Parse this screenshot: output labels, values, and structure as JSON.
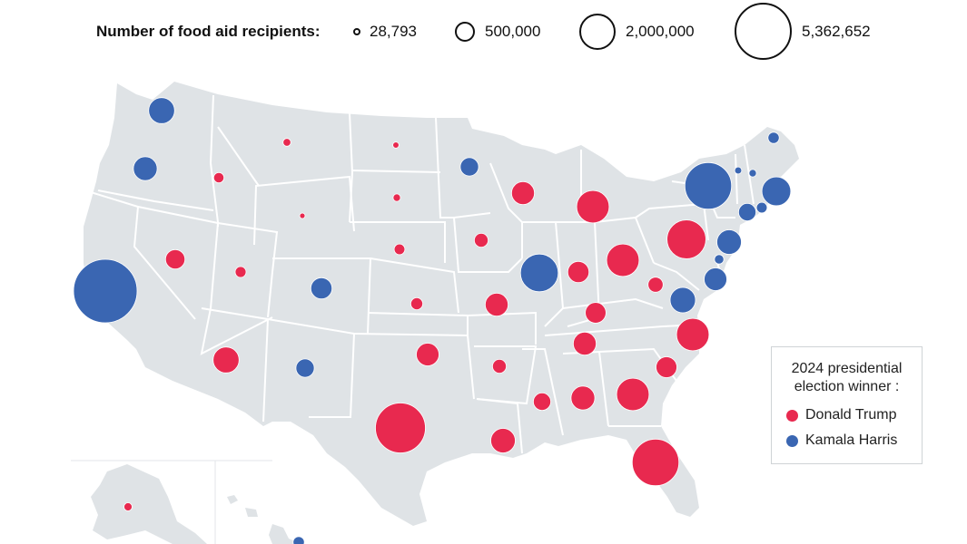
{
  "size_legend": {
    "title": "Number of food aid recipients:",
    "entries": [
      {
        "label": "28,793",
        "value": 28793
      },
      {
        "label": "500,000",
        "value": 500000
      },
      {
        "label": "2,000,000",
        "value": 2000000
      },
      {
        "label": "5,362,652",
        "value": 5362652
      }
    ]
  },
  "winner_legend": {
    "title_line1": "2024 presidential",
    "title_line2": "election winner :",
    "items": [
      {
        "label": "Donald Trump",
        "color": "#e8294f"
      },
      {
        "label": "Kamala Harris",
        "color": "#3a66b2"
      }
    ]
  },
  "colors": {
    "land": "#dfe3e6",
    "border": "#ffffff",
    "trump": "#e8294f",
    "harris": "#3a66b2"
  },
  "states": [
    {
      "state": "Washington",
      "winner": "harris",
      "recipients": 900000
    },
    {
      "state": "Oregon",
      "winner": "harris",
      "recipients": 750000
    },
    {
      "state": "California",
      "winner": "harris",
      "recipients": 5362652
    },
    {
      "state": "Idaho",
      "winner": "trump",
      "recipients": 140000
    },
    {
      "state": "Nevada",
      "winner": "trump",
      "recipients": 500000
    },
    {
      "state": "Utah",
      "winner": "trump",
      "recipients": 160000
    },
    {
      "state": "Arizona",
      "winner": "trump",
      "recipients": 900000
    },
    {
      "state": "Montana",
      "winner": "trump",
      "recipients": 80000
    },
    {
      "state": "Wyoming",
      "winner": "trump",
      "recipients": 28793
    },
    {
      "state": "Colorado",
      "winner": "harris",
      "recipients": 600000
    },
    {
      "state": "New Mexico",
      "winner": "harris",
      "recipients": 450000
    },
    {
      "state": "North Dakota",
      "winner": "trump",
      "recipients": 50000
    },
    {
      "state": "South Dakota",
      "winner": "trump",
      "recipients": 75000
    },
    {
      "state": "Nebraska",
      "winner": "trump",
      "recipients": 150000
    },
    {
      "state": "Kansas",
      "winner": "trump",
      "recipients": 190000
    },
    {
      "state": "Oklahoma",
      "winner": "trump",
      "recipients": 680000
    },
    {
      "state": "Texas",
      "winner": "trump",
      "recipients": 3300000
    },
    {
      "state": "Minnesota",
      "winner": "harris",
      "recipients": 450000
    },
    {
      "state": "Iowa",
      "winner": "trump",
      "recipients": 250000
    },
    {
      "state": "Missouri",
      "winner": "trump",
      "recipients": 690000
    },
    {
      "state": "Arkansas",
      "winner": "trump",
      "recipients": 250000
    },
    {
      "state": "Louisiana",
      "winner": "trump",
      "recipients": 800000
    },
    {
      "state": "Wisconsin",
      "winner": "trump",
      "recipients": 700000
    },
    {
      "state": "Illinois",
      "winner": "harris",
      "recipients": 1900000
    },
    {
      "state": "Michigan",
      "winner": "trump",
      "recipients": 1400000
    },
    {
      "state": "Indiana",
      "winner": "trump",
      "recipients": 600000
    },
    {
      "state": "Ohio",
      "winner": "trump",
      "recipients": 1400000
    },
    {
      "state": "Kentucky",
      "winner": "trump",
      "recipients": 570000
    },
    {
      "state": "Tennessee",
      "winner": "trump",
      "recipients": 700000
    },
    {
      "state": "Mississippi",
      "winner": "trump",
      "recipients": 400000
    },
    {
      "state": "Alabama",
      "winner": "trump",
      "recipients": 750000
    },
    {
      "state": "Georgia",
      "winner": "trump",
      "recipients": 1400000
    },
    {
      "state": "Florida",
      "winner": "trump",
      "recipients": 2900000
    },
    {
      "state": "South Carolina",
      "winner": "trump",
      "recipients": 580000
    },
    {
      "state": "North Carolina",
      "winner": "trump",
      "recipients": 1400000
    },
    {
      "state": "Virginia",
      "winner": "harris",
      "recipients": 860000
    },
    {
      "state": "West Virginia",
      "winner": "trump",
      "recipients": 300000
    },
    {
      "state": "Pennsylvania",
      "winner": "trump",
      "recipients": 2000000
    },
    {
      "state": "New York",
      "winner": "harris",
      "recipients": 2900000
    },
    {
      "state": "Vermont",
      "winner": "harris",
      "recipients": 65000
    },
    {
      "state": "New Hampshire",
      "winner": "harris",
      "recipients": 75000
    },
    {
      "state": "Maine",
      "winner": "harris",
      "recipients": 170000
    },
    {
      "state": "Massachusetts",
      "winner": "harris",
      "recipients": 1100000
    },
    {
      "state": "Connecticut",
      "winner": "harris",
      "recipients": 400000
    },
    {
      "state": "Rhode Island",
      "winner": "harris",
      "recipients": 150000
    },
    {
      "state": "New Jersey",
      "winner": "harris",
      "recipients": 800000
    },
    {
      "state": "Delaware",
      "winner": "harris",
      "recipients": 120000
    },
    {
      "state": "Maryland",
      "winner": "harris",
      "recipients": 680000
    },
    {
      "state": "Alaska",
      "winner": "trump",
      "recipients": 90000
    },
    {
      "state": "Hawaii",
      "winner": "harris",
      "recipients": 170000
    }
  ]
}
